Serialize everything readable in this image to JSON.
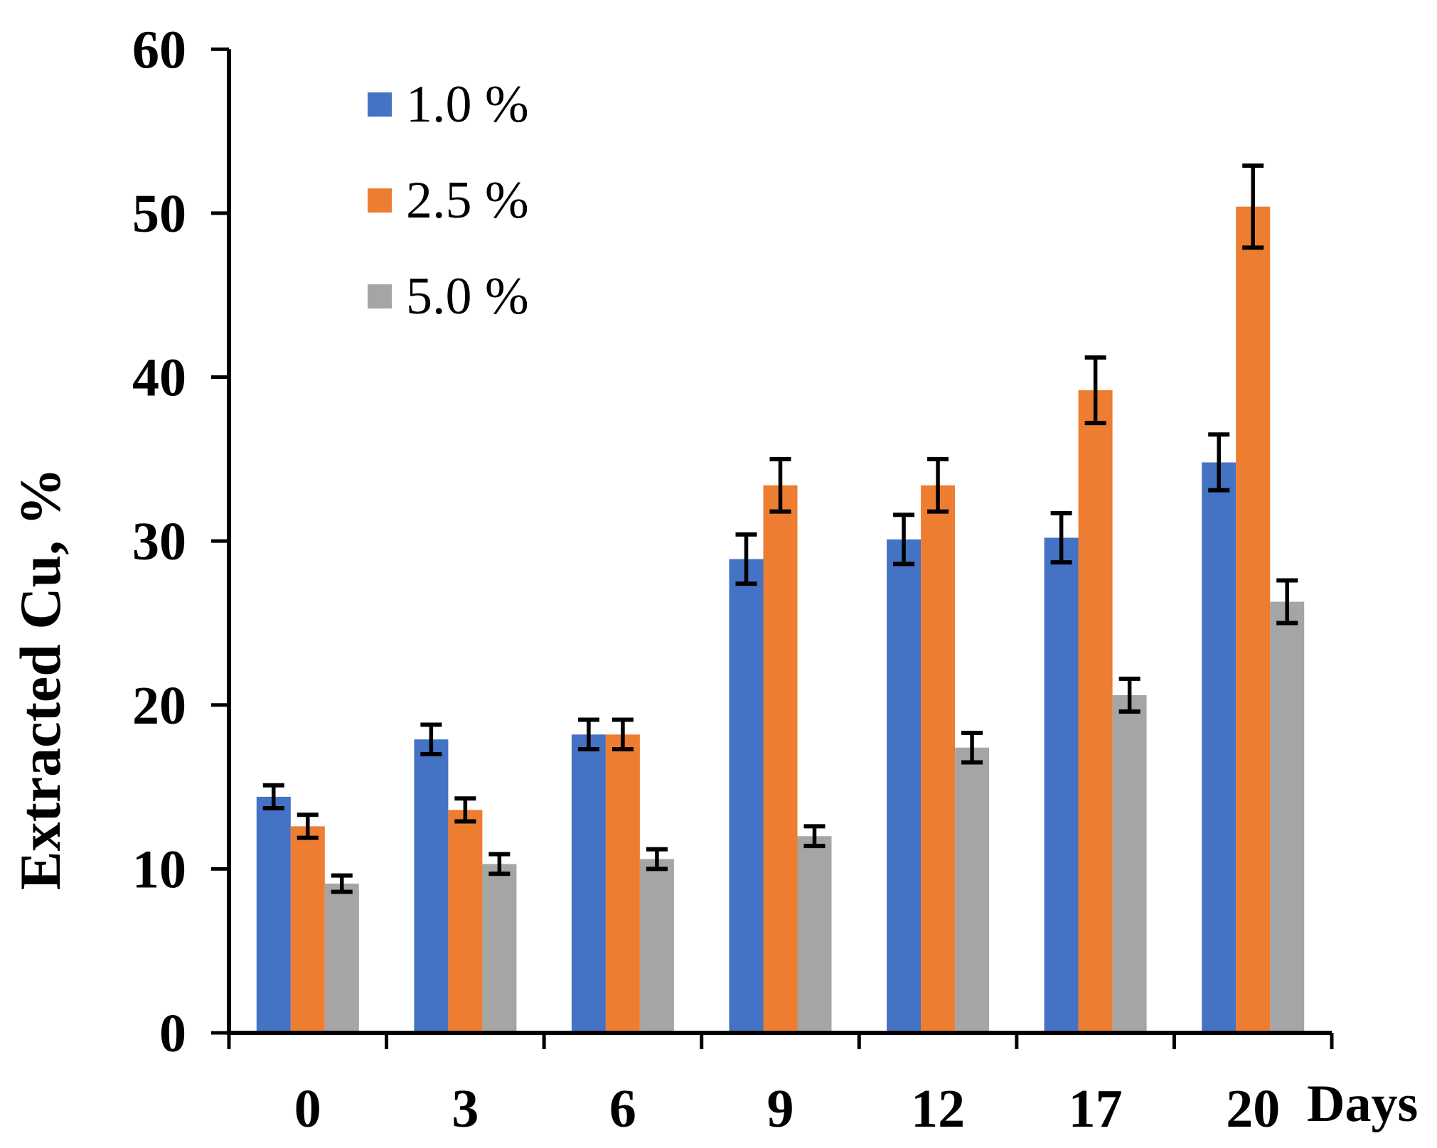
{
  "chart_data": {
    "type": "bar",
    "title": "",
    "xlabel": "Days",
    "ylabel": "Extracted Cu, %",
    "categories": [
      "0",
      "3",
      "6",
      "9",
      "12",
      "17",
      "20"
    ],
    "series": [
      {
        "name": "1.0 %",
        "color": "#4472C4",
        "values": [
          14.4,
          17.9,
          18.2,
          28.9,
          30.1,
          30.2,
          34.8
        ],
        "errors": [
          0.7,
          0.9,
          0.9,
          1.5,
          1.5,
          1.5,
          1.7
        ]
      },
      {
        "name": "2.5 %",
        "color": "#ED7D31",
        "values": [
          12.6,
          13.6,
          18.2,
          33.4,
          33.4,
          39.2,
          50.4
        ],
        "errors": [
          0.7,
          0.7,
          0.9,
          1.6,
          1.6,
          2.0,
          2.5
        ]
      },
      {
        "name": "5.0 %",
        "color": "#A5A5A5",
        "values": [
          9.1,
          10.3,
          10.6,
          12.0,
          17.4,
          20.6,
          26.3
        ],
        "errors": [
          0.5,
          0.6,
          0.6,
          0.6,
          0.9,
          1.0,
          1.3
        ]
      }
    ],
    "ylim": [
      0,
      60
    ],
    "yticks": [
      0,
      10,
      20,
      30,
      40,
      50,
      60
    ],
    "grid": false,
    "error_bars": true,
    "legend_position": "upper-left-inside",
    "axis_color": "#000000",
    "background_color": "#FFFFFF"
  }
}
